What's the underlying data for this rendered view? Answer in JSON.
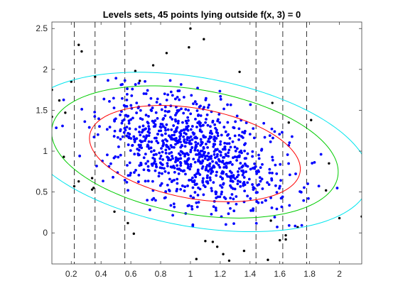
{
  "chart_data": {
    "type": "scatter",
    "title": "Levels sets, 45 points lying outside f(x, 3) = 0",
    "xlabel": "",
    "ylabel": "",
    "xlim": [
      0.07,
      2.15
    ],
    "ylim": [
      -0.38,
      2.58
    ],
    "grid": false,
    "x_ticks": [
      0.2,
      0.4,
      0.6,
      0.8,
      1,
      1.2,
      1.4,
      1.6,
      1.8,
      2
    ],
    "x_tick_labels": [
      "0.2",
      "0.4",
      "0.6",
      "0.8",
      "1",
      "1.2",
      "1.4",
      "1.6",
      "1.8",
      "2"
    ],
    "y_ticks": [
      0,
      0.5,
      1,
      1.5,
      2,
      2.5
    ],
    "y_tick_labels": [
      "0",
      "0.5",
      "1",
      "1.5",
      "2",
      "2.5"
    ],
    "colors": {
      "inlier_points": "#0000ff",
      "outlier_points": "#000000",
      "level_1": "#ff0000",
      "level_2": "#00cc00",
      "level_3": "#00e5ee",
      "vlines": "#000000",
      "axes": "#262626"
    },
    "cloud": {
      "center": [
        1.03,
        0.97
      ],
      "std_x": 0.31,
      "std_y": 0.38,
      "rho": -0.45,
      "inlier_count": 955,
      "seed": 7
    },
    "level_sets": [
      {
        "name": "level-1",
        "color": "#ff0000",
        "center": [
          1.03,
          0.97
        ],
        "semi_axis_major": 0.76,
        "semi_axis_minor": 0.52,
        "tilt_deg": -30
      },
      {
        "name": "level-2",
        "color": "#00cc00",
        "center": [
          1.03,
          0.99
        ],
        "semi_axis_major": 1.03,
        "semi_axis_minor": 0.72,
        "tilt_deg": -30
      },
      {
        "name": "level-3",
        "color": "#00e5ee",
        "center": [
          1.03,
          0.99
        ],
        "semi_axis_major": 1.26,
        "semi_axis_minor": 0.86,
        "tilt_deg": -30
      }
    ],
    "vertical_dashed_lines": [
      0.22,
      0.36,
      0.56,
      1.44,
      1.62,
      1.78
    ],
    "outliers": [
      [
        0.07,
        1.75
      ],
      [
        0.07,
        1.42
      ],
      [
        0.12,
        1.62
      ],
      [
        0.16,
        1.47
      ],
      [
        0.15,
        0.93
      ],
      [
        0.22,
        0.57
      ],
      [
        0.2,
        1.85
      ],
      [
        0.25,
        2.3
      ],
      [
        0.27,
        2.22
      ],
      [
        0.34,
        0.53
      ],
      [
        0.35,
        0.55
      ],
      [
        0.34,
        0.67
      ],
      [
        0.49,
        0.26
      ],
      [
        0.58,
        0.12
      ],
      [
        0.62,
        -0.01
      ],
      [
        0.63,
        1.98
      ],
      [
        0.66,
        1.86
      ],
      [
        0.84,
        2.2
      ],
      [
        0.99,
        2.27
      ],
      [
        1.0,
        2.5
      ],
      [
        1.04,
        -0.32
      ],
      [
        1.1,
        -0.1
      ],
      [
        1.15,
        -0.11
      ],
      [
        1.18,
        -0.17
      ],
      [
        1.22,
        -0.26
      ],
      [
        1.26,
        -0.34
      ],
      [
        1.33,
        1.97
      ],
      [
        1.55,
        1.59
      ],
      [
        1.66,
        1.35
      ],
      [
        1.72,
        0.07
      ],
      [
        1.6,
        -0.09
      ],
      [
        1.64,
        -0.08
      ],
      [
        1.36,
        -0.22
      ],
      [
        1.52,
        -0.33
      ],
      [
        1.64,
        -0.03
      ],
      [
        1.81,
        1.38
      ],
      [
        1.91,
        0.52
      ],
      [
        1.93,
        0.85
      ],
      [
        2.0,
        0.18
      ],
      [
        2.15,
        0.2
      ],
      [
        1.54,
        0.15
      ],
      [
        0.36,
        1.91
      ],
      [
        0.25,
        0.63
      ],
      [
        1.09,
        2.37
      ],
      [
        0.75,
        2.05
      ]
    ]
  }
}
